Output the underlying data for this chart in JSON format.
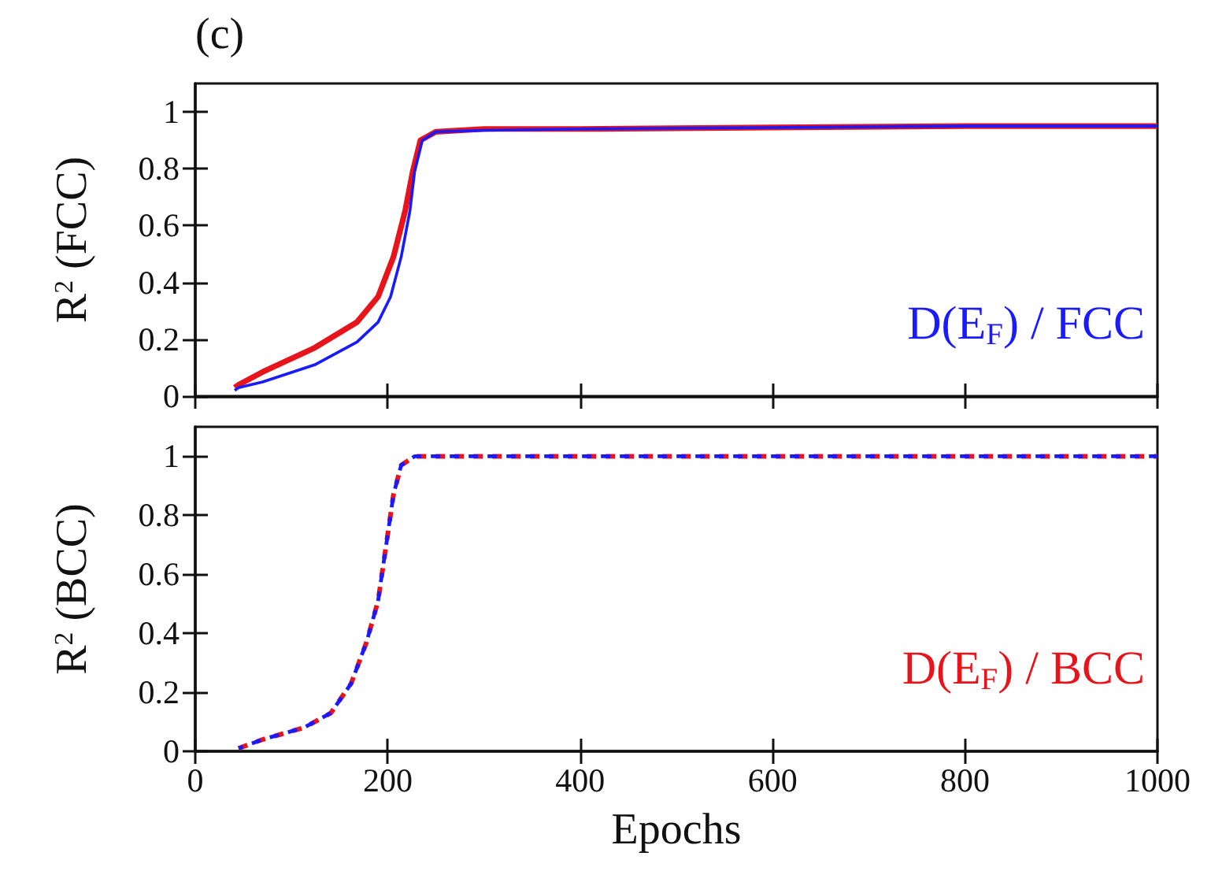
{
  "chart_data": [
    {
      "type": "line",
      "ylabel": "R$^{2}$ (FCC)",
      "annotations": [
        "(c)",
        "D(E$_{F}$) / FCC"
      ],
      "xlim": [
        0,
        1000
      ],
      "xticks": [
        0,
        200,
        400,
        600,
        800,
        1000
      ],
      "ylim": [
        0,
        1.1
      ],
      "yticks": [
        0,
        0.2,
        0.4,
        0.6,
        0.8,
        1
      ],
      "tick_labels": "y",
      "grid": false,
      "marker": "none",
      "line_style": "solid",
      "series": [
        {
          "color": "#e8141c",
          "x": [
            41,
            45,
            70,
            124,
            168,
            190,
            206,
            218,
            226,
            234,
            250,
            300,
            400,
            600,
            800,
            1000
          ],
          "values": [
            0.03,
            0.04,
            0.085,
            0.17,
            0.26,
            0.35,
            0.49,
            0.65,
            0.79,
            0.9,
            0.93,
            0.94,
            0.94,
            0.945,
            0.95,
            0.95
          ]
        },
        {
          "color": "#1a1aff",
          "x": [
            41,
            45,
            70,
            124,
            168,
            190,
            203,
            214,
            223,
            228,
            236,
            250,
            300,
            400,
            600,
            800,
            1000
          ],
          "values": [
            0.02,
            0.03,
            0.05,
            0.11,
            0.19,
            0.26,
            0.35,
            0.49,
            0.65,
            0.79,
            0.9,
            0.93,
            0.935,
            0.94,
            0.945,
            0.95,
            0.95
          ]
        }
      ]
    },
    {
      "type": "line",
      "ylabel": "R$^{2}$ (BCC)",
      "xlabel": "Epochs",
      "annotations": [
        "D(E$_{F}$) / BCC"
      ],
      "xlim": [
        0,
        1000
      ],
      "xticks": [
        0,
        200,
        400,
        600,
        800,
        1000
      ],
      "ylim": [
        0,
        1.1
      ],
      "yticks": [
        0,
        0.2,
        0.4,
        0.6,
        0.8,
        1
      ],
      "grid": false,
      "marker": "none",
      "line_style": "dashed",
      "series": [
        {
          "color": "#e8141c",
          "x": [
            45,
            70,
            113,
            141,
            162,
            178,
            190,
            198,
            206,
            214,
            228,
            300,
            500,
            1000
          ],
          "values": [
            0.01,
            0.04,
            0.08,
            0.13,
            0.23,
            0.37,
            0.51,
            0.69,
            0.87,
            0.97,
            1.0,
            1.0,
            1.0,
            1.0
          ]
        },
        {
          "color": "#1a1aff",
          "x": [
            45,
            70,
            113,
            141,
            162,
            178,
            190,
            198,
            206,
            214,
            228,
            300,
            500,
            1000
          ],
          "values": [
            0.01,
            0.04,
            0.08,
            0.13,
            0.23,
            0.37,
            0.51,
            0.69,
            0.87,
            0.97,
            1.0,
            1.0,
            1.0,
            1.0
          ]
        }
      ]
    }
  ]
}
